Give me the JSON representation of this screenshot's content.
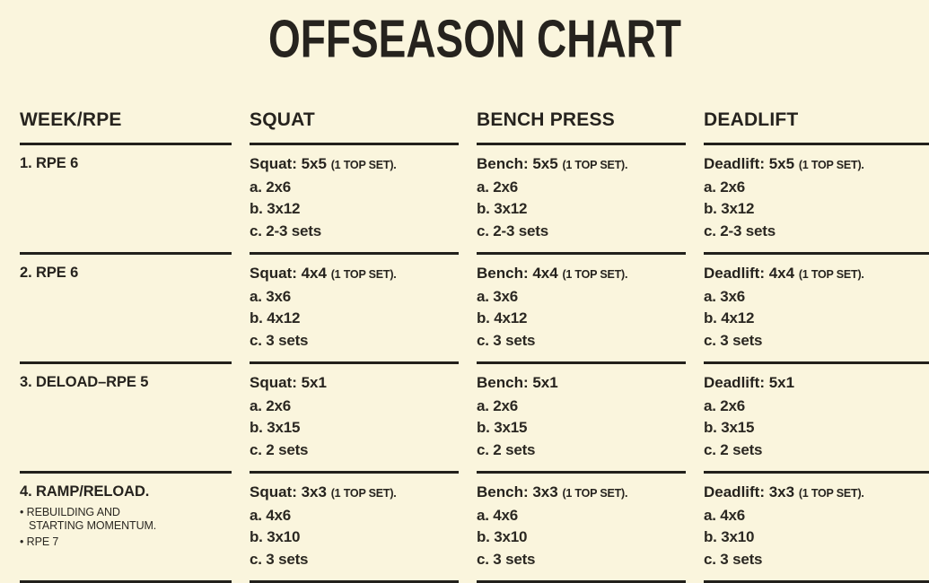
{
  "page": {
    "background_color": "#faf5dd",
    "text_color": "#26231e",
    "rule_color": "#22201b"
  },
  "title": "OFFSEASON CHART",
  "table": {
    "headers": [
      "WEEK/RPE",
      "SQUAT",
      "BENCH PRESS",
      "DEADLIFT"
    ],
    "rows": [
      {
        "week": "1. RPE 6",
        "squat": {
          "main": "Squat: 5x5",
          "note": "(1 TOP SET).",
          "items": [
            "a. 2x6",
            "b. 3x12",
            "c. 2-3 sets"
          ]
        },
        "bench": {
          "main": "Bench: 5x5",
          "note": "(1 TOP SET).",
          "items": [
            "a. 2x6",
            "b. 3x12",
            "c. 2-3 sets"
          ]
        },
        "deadlift": {
          "main": "Deadlift: 5x5",
          "note": "(1 TOP SET).",
          "items": [
            "a. 2x6",
            "b. 3x12",
            "c. 2-3 sets"
          ]
        }
      },
      {
        "week": "2. RPE 6",
        "squat": {
          "main": "Squat: 4x4",
          "note": "(1 TOP SET).",
          "items": [
            "a. 3x6",
            "b. 4x12",
            "c. 3 sets"
          ]
        },
        "bench": {
          "main": "Bench: 4x4",
          "note": "(1 TOP SET).",
          "items": [
            "a. 3x6",
            "b. 4x12",
            "c. 3 sets"
          ]
        },
        "deadlift": {
          "main": "Deadlift: 4x4",
          "note": "(1 TOP SET).",
          "items": [
            "a. 3x6",
            "b. 4x12",
            "c. 3 sets"
          ]
        }
      },
      {
        "week": "3. DELOAD–RPE 5",
        "squat": {
          "main": "Squat: 5x1",
          "note": "",
          "items": [
            "a. 2x6",
            "b. 3x15",
            "c. 2 sets"
          ]
        },
        "bench": {
          "main": "Bench: 5x1",
          "note": "",
          "items": [
            "a. 2x6",
            "b. 3x15",
            "c. 2 sets"
          ]
        },
        "deadlift": {
          "main": "Deadlift: 5x1",
          "note": "",
          "items": [
            "a. 2x6",
            "b. 3x15",
            "c. 2 sets"
          ]
        }
      },
      {
        "week": "4. RAMP/RELOAD.",
        "week_notes": [
          "• REBUILDING AND STARTING MOMENTUM.",
          "• RPE 7"
        ],
        "squat": {
          "main": "Squat: 3x3",
          "note": "(1 TOP SET).",
          "items": [
            "a. 4x6",
            "b. 3x10",
            "c. 3 sets"
          ]
        },
        "bench": {
          "main": "Bench: 3x3",
          "note": "(1 TOP SET).",
          "items": [
            "a. 4x6",
            "b. 3x10",
            "c. 3 sets"
          ]
        },
        "deadlift": {
          "main": "Deadlift: 3x3",
          "note": "(1 TOP SET).",
          "items": [
            "a. 4x6",
            "b. 3x10",
            "c. 3 sets"
          ]
        }
      }
    ]
  }
}
